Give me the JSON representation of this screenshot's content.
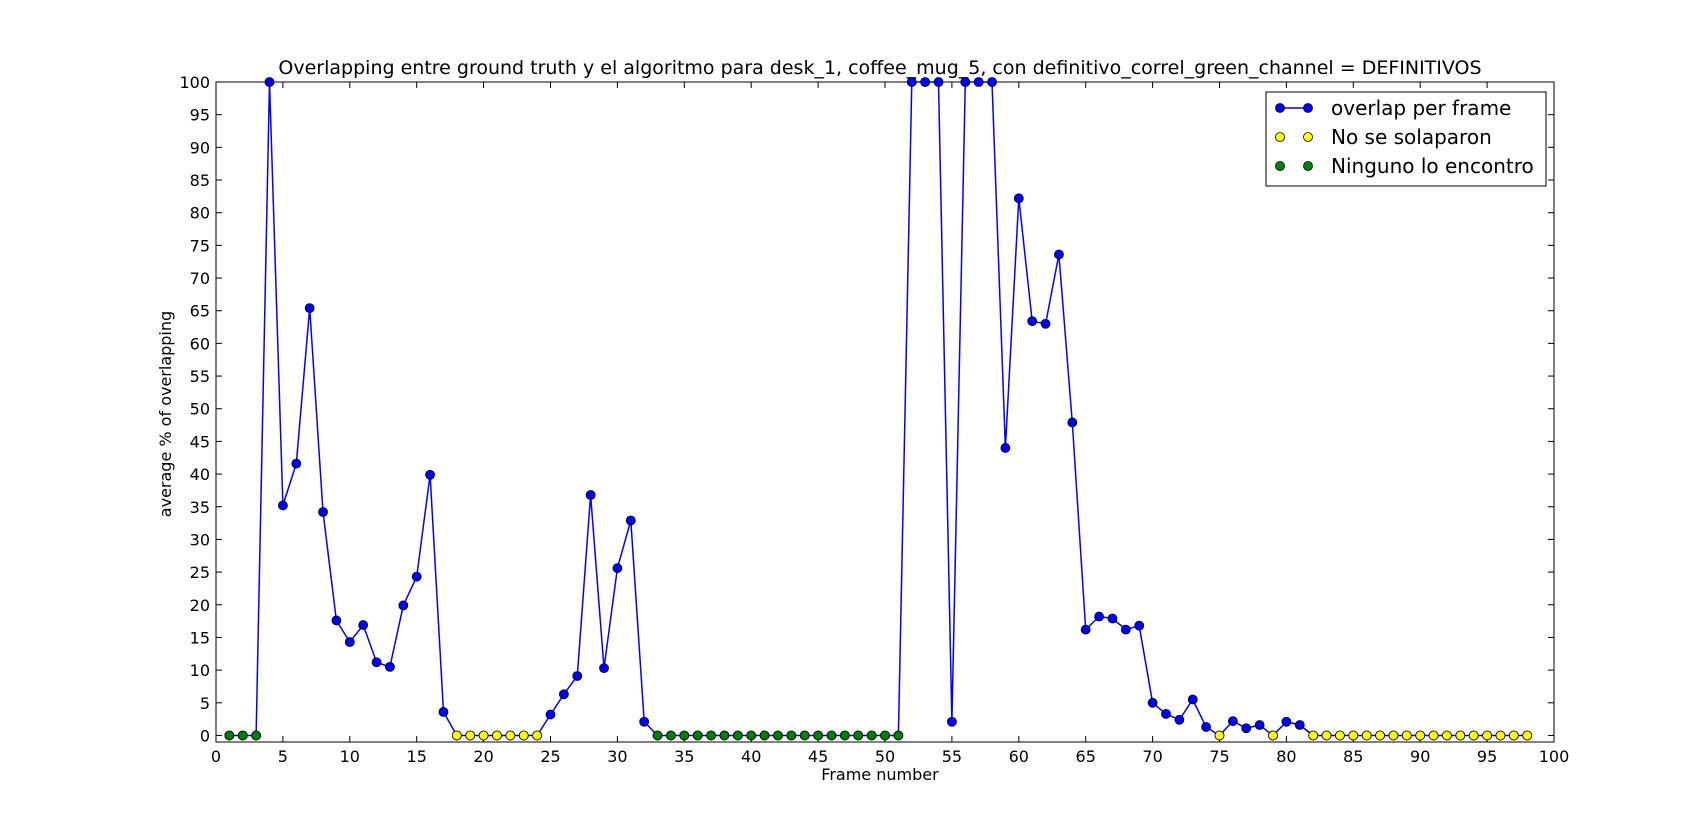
{
  "chart_data": {
    "type": "line",
    "title": "Overlapping entre ground truth y el algoritmo para desk_1, coffee_mug_5, con definitivo_correl_green_channel = DEFINITIVOS",
    "xlabel": "Frame number",
    "ylabel": "average % of overlapping",
    "xlim": [
      0,
      100
    ],
    "ylim": [
      -1,
      100
    ],
    "xticks": [
      0,
      5,
      10,
      15,
      20,
      25,
      30,
      35,
      40,
      45,
      50,
      55,
      60,
      65,
      70,
      75,
      80,
      85,
      90,
      95,
      100
    ],
    "yticks": [
      0,
      5,
      10,
      15,
      20,
      25,
      30,
      35,
      40,
      45,
      50,
      55,
      60,
      65,
      70,
      75,
      80,
      85,
      90,
      95,
      100
    ],
    "grid": false,
    "legend_position": "top-right",
    "series": [
      {
        "name": "overlap per frame",
        "color": "#0000ff",
        "style": "line-with-markers",
        "x": [
          1,
          2,
          3,
          4,
          5,
          6,
          7,
          8,
          9,
          10,
          11,
          12,
          13,
          14,
          15,
          16,
          17,
          18,
          19,
          20,
          21,
          22,
          23,
          24,
          25,
          26,
          27,
          28,
          29,
          30,
          31,
          32,
          33,
          34,
          35,
          36,
          37,
          38,
          39,
          40,
          41,
          42,
          43,
          44,
          45,
          46,
          47,
          48,
          49,
          50,
          51,
          52,
          53,
          54,
          55,
          56,
          57,
          58,
          59,
          60,
          61,
          62,
          63,
          64,
          65,
          66,
          67,
          68,
          69,
          70,
          71,
          72,
          73,
          74,
          75,
          76,
          77,
          78,
          79,
          80,
          81,
          82,
          83,
          84,
          85,
          86,
          87,
          88,
          89,
          90,
          91,
          92,
          93,
          94,
          95,
          96,
          97,
          98
        ],
        "y": [
          0,
          0,
          0,
          100,
          35.2,
          41.6,
          65.4,
          34.2,
          17.6,
          14.3,
          16.9,
          11.2,
          10.5,
          19.9,
          24.3,
          39.9,
          3.6,
          0,
          0,
          0,
          0,
          0,
          0,
          0,
          3.2,
          6.3,
          9.1,
          36.8,
          10.3,
          25.6,
          32.9,
          2.1,
          0,
          0,
          0,
          0,
          0,
          0,
          0,
          0,
          0,
          0,
          0,
          0,
          0,
          0,
          0,
          0,
          0,
          0,
          0,
          100,
          100,
          100,
          2.1,
          100,
          100,
          100,
          44,
          82.2,
          63.4,
          63,
          73.6,
          47.9,
          16.2,
          18.2,
          17.9,
          16.2,
          16.8,
          5,
          3.3,
          2.4,
          5.5,
          1.3,
          0,
          2.2,
          1.1,
          1.6,
          0,
          2.1,
          1.6,
          0,
          0,
          0,
          0,
          0,
          0,
          0,
          0,
          0,
          0,
          0,
          0,
          0,
          0,
          0,
          0,
          0
        ]
      },
      {
        "name": "No se solaparon",
        "color": "#ffff00",
        "style": "markers",
        "x": [
          18,
          19,
          20,
          21,
          22,
          23,
          24,
          75,
          79,
          82,
          83,
          84,
          85,
          86,
          87,
          88,
          89,
          90,
          91,
          92,
          93,
          94,
          95,
          96,
          97,
          98
        ],
        "y": [
          0,
          0,
          0,
          0,
          0,
          0,
          0,
          0,
          0,
          0,
          0,
          0,
          0,
          0,
          0,
          0,
          0,
          0,
          0,
          0,
          0,
          0,
          0,
          0,
          0,
          0
        ]
      },
      {
        "name": "Ninguno lo encontro",
        "color": "#008000",
        "style": "markers",
        "x": [
          1,
          2,
          3,
          33,
          34,
          35,
          36,
          37,
          38,
          39,
          40,
          41,
          42,
          43,
          44,
          45,
          46,
          47,
          48,
          49,
          50,
          51
        ],
        "y": [
          0,
          0,
          0,
          0,
          0,
          0,
          0,
          0,
          0,
          0,
          0,
          0,
          0,
          0,
          0,
          0,
          0,
          0,
          0,
          0,
          0,
          0
        ]
      }
    ]
  }
}
